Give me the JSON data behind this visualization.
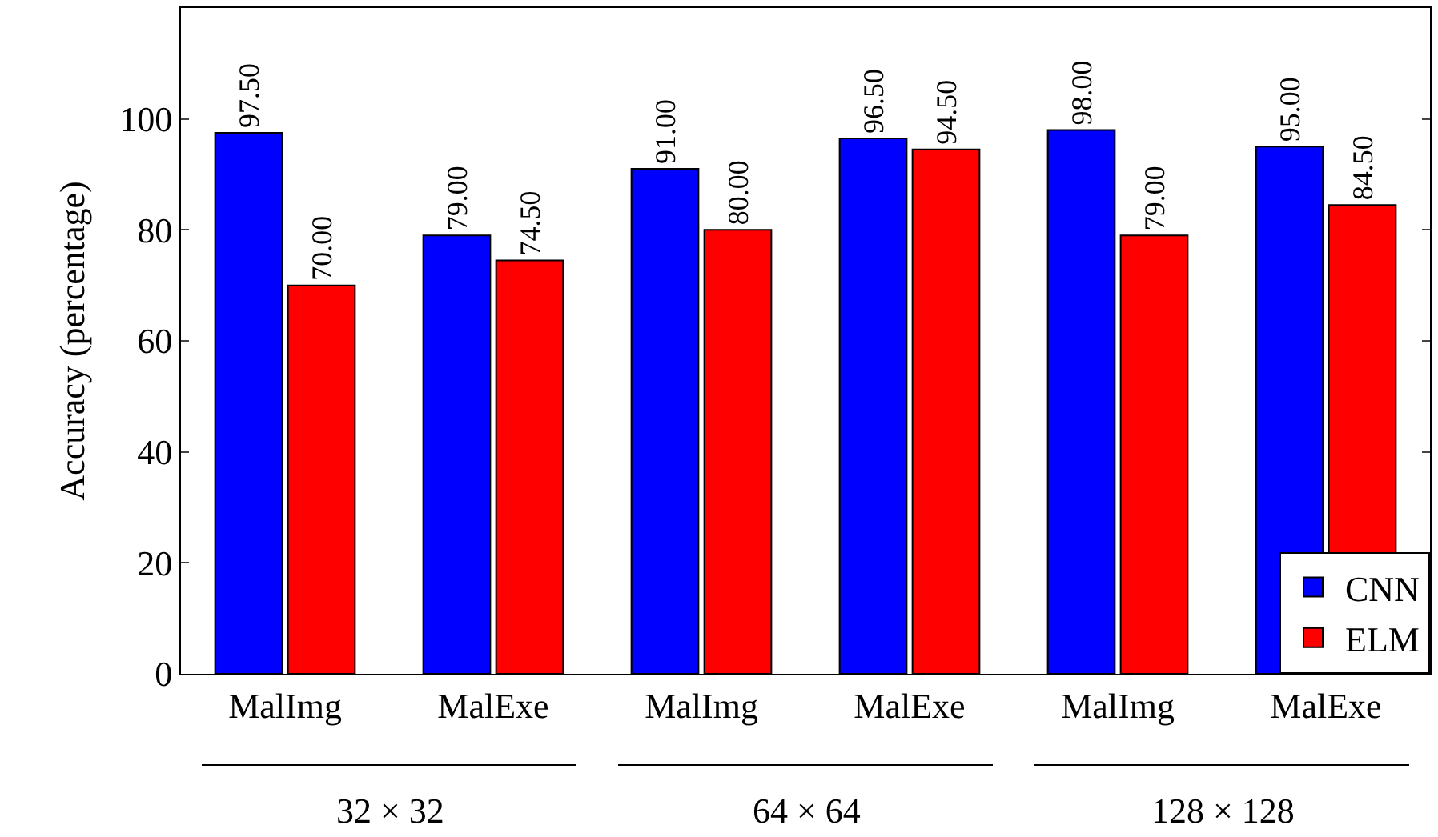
{
  "chart_data": {
    "type": "bar",
    "ylabel": "Accuracy (percentage)",
    "categories": [
      "MalImg",
      "MalExe",
      "MalImg",
      "MalExe",
      "MalImg",
      "MalExe"
    ],
    "series": [
      {
        "name": "CNN",
        "color": "#0000ff",
        "values": [
          97.5,
          79.0,
          91.0,
          96.5,
          98.0,
          95.0
        ],
        "value_labels": [
          "97.50",
          "79.00",
          "91.00",
          "96.50",
          "98.00",
          "95.00"
        ]
      },
      {
        "name": "ELM",
        "color": "#ff0000",
        "values": [
          70.0,
          74.5,
          80.0,
          94.5,
          79.0,
          84.5
        ],
        "value_labels": [
          "70.00",
          "74.50",
          "80.00",
          "94.50",
          "79.00",
          "84.50"
        ]
      }
    ],
    "ylim": [
      0,
      120
    ],
    "yticks": [
      0,
      20,
      40,
      60,
      80,
      100
    ],
    "annotations": [
      "32 × 32",
      "64 × 64",
      "128 × 128"
    ],
    "legend": "bottom right"
  }
}
